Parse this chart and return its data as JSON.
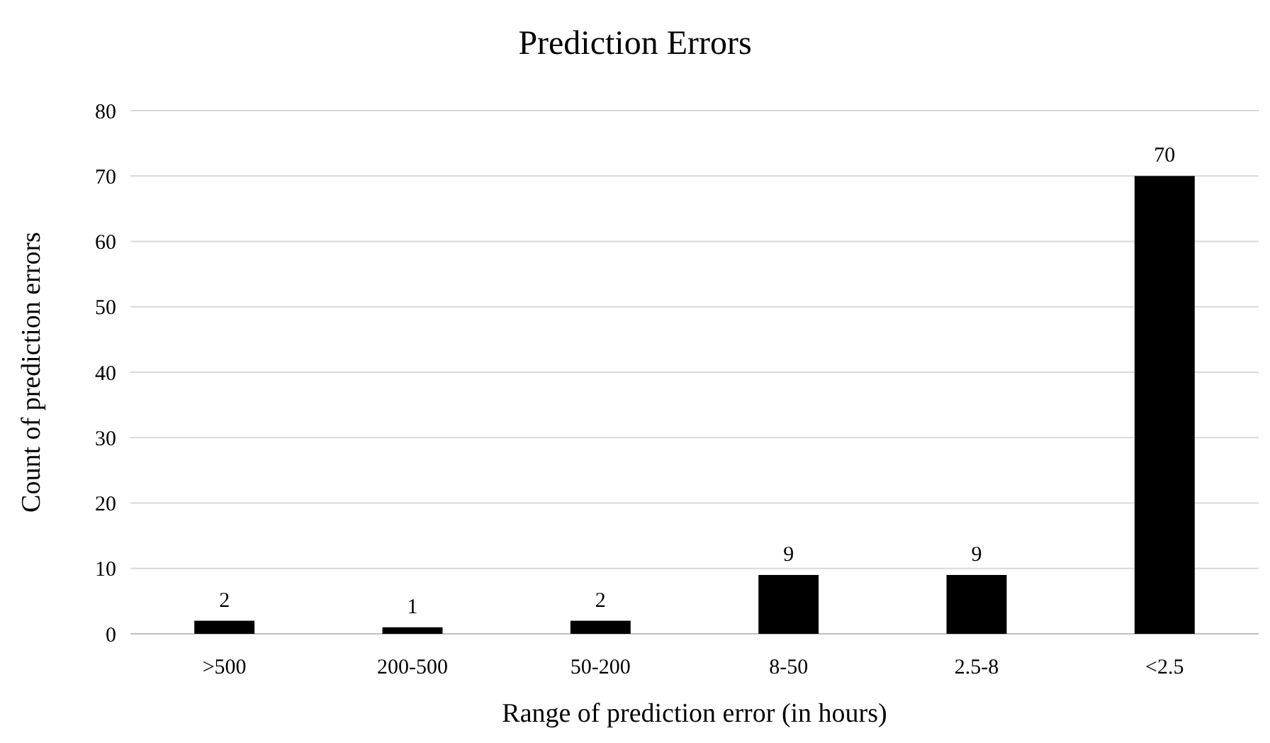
{
  "chart_data": {
    "type": "bar",
    "title": "Prediction Errors",
    "xlabel": "Range of prediction error (in hours)",
    "ylabel": "Count of prediction errors",
    "categories": [
      ">500",
      "200-500",
      "50-200",
      "8-50",
      "2.5-8",
      "<2.5"
    ],
    "values": [
      2,
      1,
      2,
      9,
      9,
      70
    ],
    "color": "#000000",
    "ylim": [
      0,
      80
    ],
    "yticks": [
      0,
      10,
      20,
      30,
      40,
      50,
      60,
      70,
      80
    ],
    "grid": "y",
    "data_labels": true
  }
}
